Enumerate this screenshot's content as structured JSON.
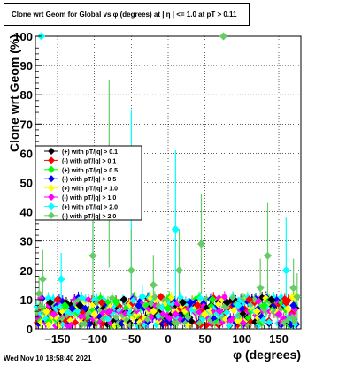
{
  "chart_data": {
    "type": "scatter",
    "title": "Clone wrt Geom for Global vs φ (degrees) at |  η | <= 1.0 at pT > 0.11",
    "xlabel": "φ (degrees)",
    "ylabel": "Clone wrt Geom (%)",
    "xlim": [
      -180,
      180
    ],
    "ylim": [
      0,
      100
    ],
    "x_ticks": [
      -150,
      -100,
      -50,
      0,
      50,
      100,
      150
    ],
    "x_tick_labels": [
      "−150",
      "−100",
      "−50",
      "0",
      "50",
      "100",
      "150"
    ],
    "y_ticks": [
      0,
      10,
      20,
      30,
      40,
      50,
      60,
      70,
      80,
      90,
      100
    ],
    "grid": true,
    "legend_placement": "left-middle",
    "baseline_band": {
      "x_start": -177,
      "x_end": 177,
      "x_step": 5,
      "y_min": 1,
      "y_max": 11
    },
    "series": [
      {
        "name": "(+) with pT/|q| > 0.1",
        "color": "#000000",
        "points": [
          [
            -160,
            9
          ],
          [
            -120,
            8
          ],
          [
            -60,
            10
          ],
          [
            20,
            9
          ],
          [
            80,
            9
          ],
          [
            140,
            10
          ]
        ]
      },
      {
        "name": "(-) with pT/|q| > 0.1",
        "color": "#ff0000",
        "points": [
          [
            -150,
            10
          ],
          [
            -90,
            9
          ],
          [
            -10,
            11
          ],
          [
            40,
            8
          ],
          [
            110,
            10
          ],
          [
            160,
            9
          ]
        ]
      },
      {
        "name": "(+) with pT/|q| > 0.5",
        "color": "#00ff00",
        "points": [
          [
            -140,
            8
          ],
          [
            -70,
            9
          ],
          [
            0,
            7
          ],
          [
            60,
            10
          ],
          [
            130,
            8
          ]
        ]
      },
      {
        "name": "(-) with pT/|q| > 0.5",
        "color": "#0000ff",
        "points": [
          [
            -130,
            7
          ],
          [
            -40,
            8
          ],
          [
            30,
            9
          ],
          [
            100,
            7
          ],
          [
            170,
            8
          ]
        ]
      },
      {
        "name": "(+) with pT/|q| > 1.0",
        "color": "#ffff00",
        "points": [
          [
            -165,
            6
          ],
          [
            -100,
            5
          ],
          [
            -20,
            6
          ],
          [
            50,
            5
          ],
          [
            120,
            6
          ]
        ]
      },
      {
        "name": "(-) with pT/|q| > 1.0",
        "color": "#ff00ff",
        "points": [
          [
            -155,
            5
          ],
          [
            -80,
            6
          ],
          [
            10,
            5
          ],
          [
            70,
            6
          ],
          [
            150,
            5
          ]
        ]
      },
      {
        "name": "(+) with pT/|q| > 2.0",
        "color": "#00ffff",
        "points": [
          [
            -172,
            100,
            0
          ],
          [
            -145,
            17,
            9
          ],
          [
            -102,
            42,
            20
          ],
          [
            -50,
            40,
            35
          ],
          [
            -35,
            11,
            4
          ],
          [
            10,
            34,
            27
          ],
          [
            95,
            8,
            3
          ],
          [
            160,
            20,
            18
          ]
        ]
      },
      {
        "name": "(-) with pT/|q| > 2.0",
        "color": "#66cc66",
        "points": [
          [
            -175,
            12,
            6
          ],
          [
            -170,
            17,
            10
          ],
          [
            -102,
            25,
            20
          ],
          [
            -80,
            53,
            32
          ],
          [
            -50,
            20,
            14
          ],
          [
            -20,
            15,
            10
          ],
          [
            15,
            20,
            14
          ],
          [
            45,
            29,
            17
          ],
          [
            75,
            100,
            0
          ],
          [
            125,
            14,
            10
          ],
          [
            135,
            25,
            18
          ],
          [
            170,
            14,
            10
          ],
          [
            175,
            11,
            8
          ]
        ]
      }
    ]
  },
  "timestamp": "Wed Nov 10 18:58:40 2021"
}
